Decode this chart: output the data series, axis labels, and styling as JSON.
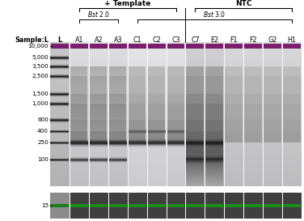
{
  "fig_width": 3.76,
  "fig_height": 2.73,
  "dpi": 100,
  "lane_labels": [
    "L",
    "A1",
    "A2",
    "A3",
    "C1",
    "C2",
    "C3",
    "C7",
    "E2",
    "F1",
    "F2",
    "G2",
    "H1"
  ],
  "n_lanes": 13,
  "header_template": "+ Template",
  "header_ntc": "NTC",
  "header_bst2": "Bst 2.0",
  "header_bst3": "Bst 3.0",
  "purple_color": "#7b1f6e",
  "green_color": "#1a7a1a",
  "ladder_labels": [
    "10,000",
    "5,000",
    "3,500",
    "2,500",
    "1,500",
    "1,000",
    "600",
    "400",
    "250",
    "100"
  ],
  "label_15": "15",
  "sample_label": "Sample:L"
}
